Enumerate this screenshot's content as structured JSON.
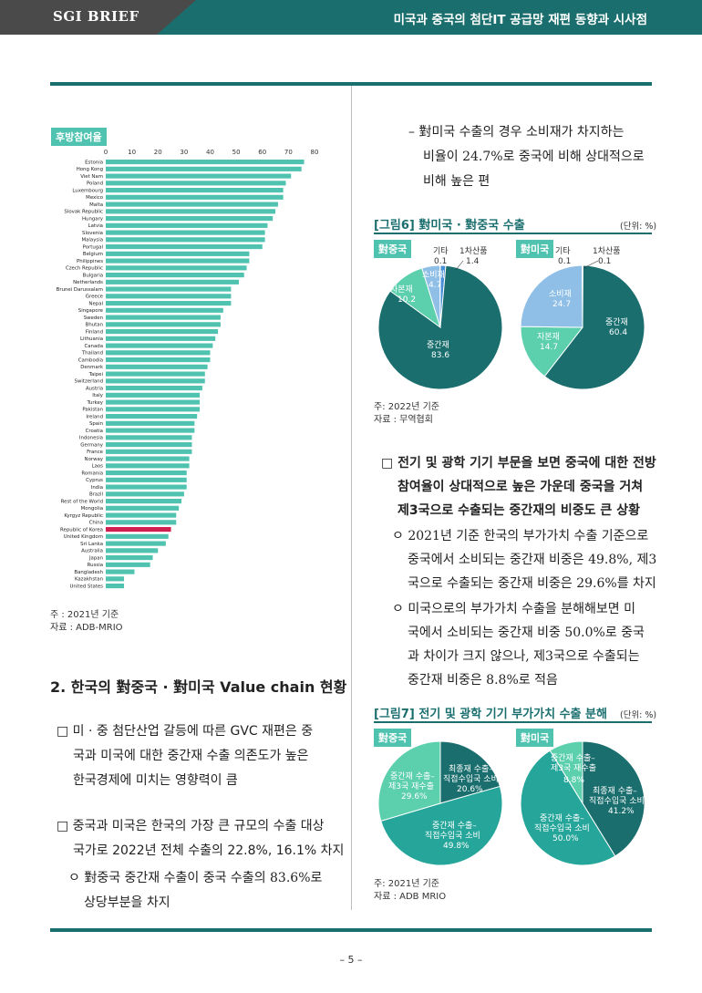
{
  "header": {
    "brand": "SGI BRIEF",
    "title": "미국과 중국의 첨단IT 공급망 재편 동향과 시사점"
  },
  "left": {
    "chart_badge": "후방참여율",
    "chart_note": "주 : 2021년 기준",
    "chart_source": "자료 : ADB-MRIO",
    "section_heading": "2. 한국의 對중국 · 對미국 Value chain 현황",
    "p1_line1": "□ 미 · 중 첨단산업 갈등에 따른 GVC 재편은 중",
    "p1_line2": "국과 미국에 대한 중간재 수출 의존도가 높은",
    "p1_line3": "한국경제에 미치는 영향력이 큼",
    "p2_line1": "□ 중국과 미국은 한국의 가장 큰 규모의 수출 대상",
    "p2_line2": "국가로 2022년 전체 수출의 22.8%, 16.1% 차지",
    "p3_line1": "ㅇ 對중국 중간재 수출이 중국 수출의 83.6%로",
    "p3_line2": "상당부분을 차지"
  },
  "right": {
    "bullet_line1": "– 對미국 수출의 경우 소비재가 차지하는",
    "bullet_line2": "비율이 24.7%로 중국에 비해 상대적으로",
    "bullet_line3": "비해 높은 편",
    "fig6_title": "[그림6] 對미국 · 對중국 수출",
    "fig6_unit": "(단위: %)",
    "fig6_china_badge": "對중국",
    "fig6_us_badge": "對미국",
    "fig6_note": "주: 2022년 기준",
    "fig6_source": "자료 : 무역협회",
    "p4_line1": "□ 전기 및 광학 기기 부문을 보면 중국에 대한 전방",
    "p4_line2": "참여율이 상대적으로 높은 가운데 중국을 거쳐",
    "p4_line3": "제3국으로 수출되는 중간재의 비중도 큰 상황",
    "p5_line1": "ㅇ 2021년 기준 한국의 부가가치 수출 기준으로",
    "p5_line2": "중국에서 소비되는 중간재 비중은 49.8%, 제3",
    "p5_line3": "국으로 수출되는 중간재 비중은 29.6%를 차지",
    "p6_line1": "ㅇ 미국으로의 부가가치 수출을 분해해보면 미",
    "p6_line2": "국에서 소비되는 중간재 비중 50.0%로 중국",
    "p6_line3": "과 차이가 크지 않으나, 제3국으로 수출되는",
    "p6_line4": "중간재 비중은 8.8%로 적음",
    "fig7_title": "[그림7] 전기 및 광학 기기 부가가치 수출 분해",
    "fig7_unit": "(단위: %)",
    "fig7_china_badge": "對중국",
    "fig7_us_badge": "對미국",
    "fig7_note": "주: 2021년 기준",
    "fig7_source": "자료 : ADB MRIO"
  },
  "page_number": "– 5 –",
  "colors": {
    "brand_teal": "#1a6e6e",
    "bar_teal": "#4fc3b0",
    "highlight_red": "#d0204f",
    "pie_dark": "#1a6e6e",
    "pie_mid": "#26a69a",
    "pie_light_teal": "#5ccfad",
    "pie_light_blue": "#8fbfe6",
    "pie_blue": "#4a90d9"
  },
  "chart_data": [
    {
      "type": "bar",
      "orientation": "horizontal",
      "title": "후방참여율",
      "xlim": [
        0,
        80
      ],
      "ticks": [
        0,
        10,
        20,
        30,
        40,
        50,
        60,
        70,
        80
      ],
      "highlight": "Republic of Korea",
      "categories": [
        "Estonia",
        "Hong Kong",
        "Viet Nam",
        "Poland",
        "Luxembourg",
        "Mexico",
        "Malta",
        "Slovak Republic",
        "Hungary",
        "Latvia",
        "Slovenia",
        "Malaysia",
        "Portugal",
        "Belgium",
        "Philippines",
        "Czech Republic",
        "Bulgaria",
        "Netherlands",
        "Brunei Darussalam",
        "Greece",
        "Nepal",
        "Singapore",
        "Sweden",
        "Bhutan",
        "Finland",
        "Lithuania",
        "Canada",
        "Thailand",
        "Cambodia",
        "Denmark",
        "Taipei",
        "Switzerland",
        "Austria",
        "Italy",
        "Turkey",
        "Pakistan",
        "Ireland",
        "Spain",
        "Croatia",
        "Indonesia",
        "Germany",
        "France",
        "Norway",
        "Laos",
        "Romania",
        "Cyprus",
        "India",
        "Brazil",
        "Rest of the World",
        "Mongolia",
        "Kyrgyz Republic",
        "China",
        "Republic of Korea",
        "United Kingdom",
        "Sri Lanka",
        "Australia",
        "Japan",
        "Russia",
        "Bangladesh",
        "Kazakhstan",
        "United States"
      ],
      "values": [
        76,
        75,
        71,
        69,
        68,
        68,
        66,
        65,
        64,
        62,
        61,
        61,
        60,
        55,
        55,
        54,
        53,
        51,
        48,
        48,
        48,
        45,
        44,
        44,
        43,
        42,
        41,
        40,
        40,
        39,
        38,
        38,
        37,
        36,
        36,
        36,
        35,
        34,
        34,
        33,
        33,
        33,
        32,
        32,
        31,
        31,
        31,
        30,
        29,
        28,
        27,
        27,
        25,
        24,
        23,
        20,
        18,
        17,
        11,
        7,
        7
      ]
    },
    {
      "type": "pie",
      "title": "對중국",
      "figure": "[그림6] 對미국 · 對중국 수출",
      "labels": [
        "중간재",
        "자본재",
        "소비재",
        "1차산품",
        "기타"
      ],
      "values": [
        83.6,
        10.2,
        4.7,
        1.4,
        0.1
      ]
    },
    {
      "type": "pie",
      "title": "對미국",
      "figure": "[그림6] 對미국 · 對중국 수출",
      "labels": [
        "중간재",
        "자본재",
        "소비재",
        "1차산품",
        "기타"
      ],
      "values": [
        60.4,
        14.7,
        24.7,
        0.1,
        0.1
      ]
    },
    {
      "type": "pie",
      "title": "對중국",
      "figure": "[그림7] 전기 및 광학 기기 부가가치 수출 분해",
      "labels": [
        "최종재 수출–직접수입국 소비",
        "중간재 수출–직접수입국 소비",
        "중간재 수출–제3국 재수출"
      ],
      "values": [
        20.6,
        49.8,
        29.6
      ]
    },
    {
      "type": "pie",
      "title": "對미국",
      "figure": "[그림7] 전기 및 광학 기기 부가가치 수출 분해",
      "labels": [
        "최종재 수출–직접수입국 소비",
        "중간재 수출–직접수입국 소비",
        "중간재 수출–제3국 재수출"
      ],
      "values": [
        41.2,
        50.0,
        8.8
      ]
    }
  ]
}
